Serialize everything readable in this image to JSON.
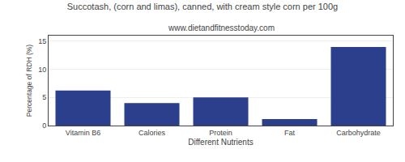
{
  "chart_data": {
    "type": "bar",
    "title": "Succotash, (corn and limas), canned, with cream style corn per 100g",
    "subtitle": "www.dietandfitnesstoday.com",
    "categories": [
      "Vitamin B6",
      "Calories",
      "Protein",
      "Fat",
      "Carbohydrate"
    ],
    "values": [
      6.25,
      4.0,
      5.0,
      1.15,
      14.0
    ],
    "color": "#2b3f8c",
    "xlabel": "Different Nutrients",
    "ylabel": "Percentage of RDH (%)",
    "ylim": [
      0,
      16
    ],
    "yticks": [
      0,
      5,
      10,
      15
    ],
    "grid": true
  }
}
